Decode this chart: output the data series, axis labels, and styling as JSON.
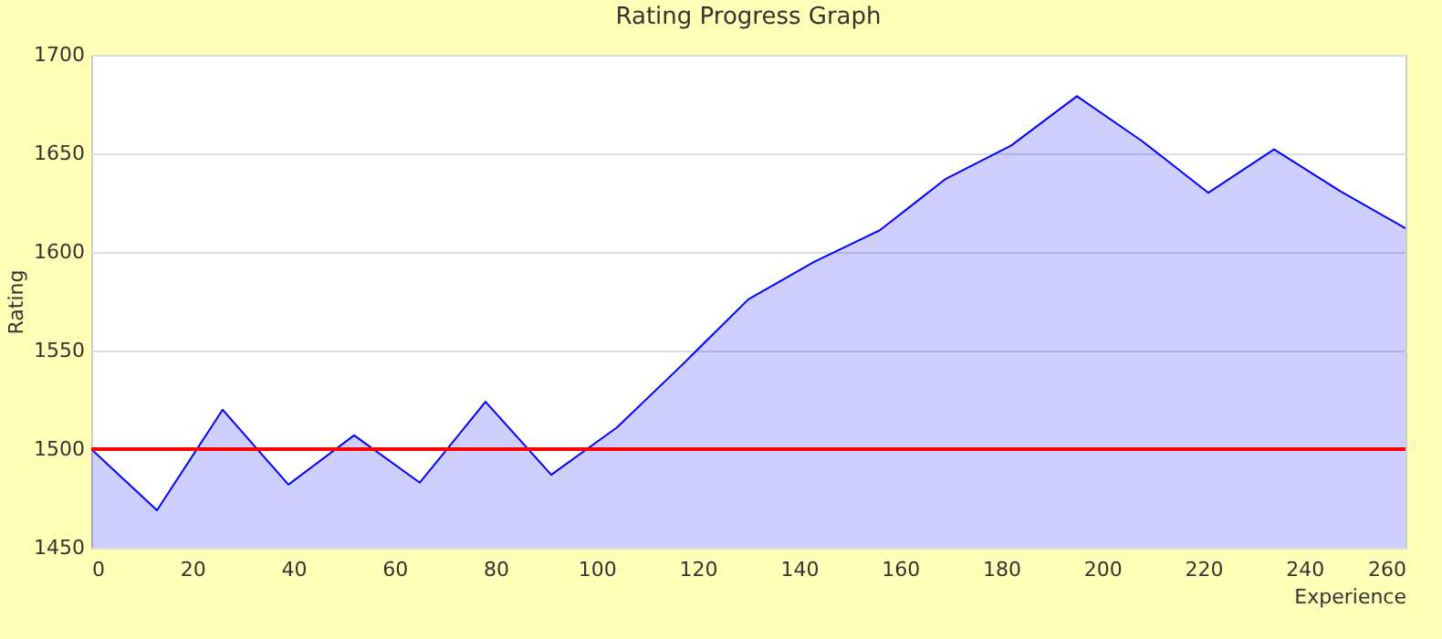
{
  "chart_data": {
    "type": "area",
    "title": "Rating Progress Graph",
    "xlabel": "Experience",
    "ylabel": "Rating",
    "x": [
      0,
      13,
      26,
      39,
      52,
      65,
      78,
      91,
      104,
      117,
      130,
      143,
      156,
      169,
      182,
      195,
      208,
      221,
      234,
      247,
      260
    ],
    "series": [
      {
        "color": "#0000ff",
        "values": [
          1500,
          1469,
          1520,
          1482,
          1507,
          1483,
          1524,
          1487,
          1511,
          1543,
          1576,
          1595,
          1611,
          1637,
          1654,
          1679,
          1656,
          1630,
          1652,
          1631,
          1612
        ]
      }
    ],
    "xlim": [
      0,
      260
    ],
    "xticks": [
      0,
      20,
      40,
      60,
      80,
      100,
      120,
      140,
      160,
      180,
      200,
      220,
      240,
      260
    ],
    "ylim": [
      1450,
      1700
    ],
    "yticks": [
      1450,
      1500,
      1550,
      1600,
      1650,
      1700
    ],
    "ref_lines": [
      {
        "axis": "y",
        "value": 1500,
        "color": "#ff0000"
      }
    ],
    "grid": "y"
  }
}
